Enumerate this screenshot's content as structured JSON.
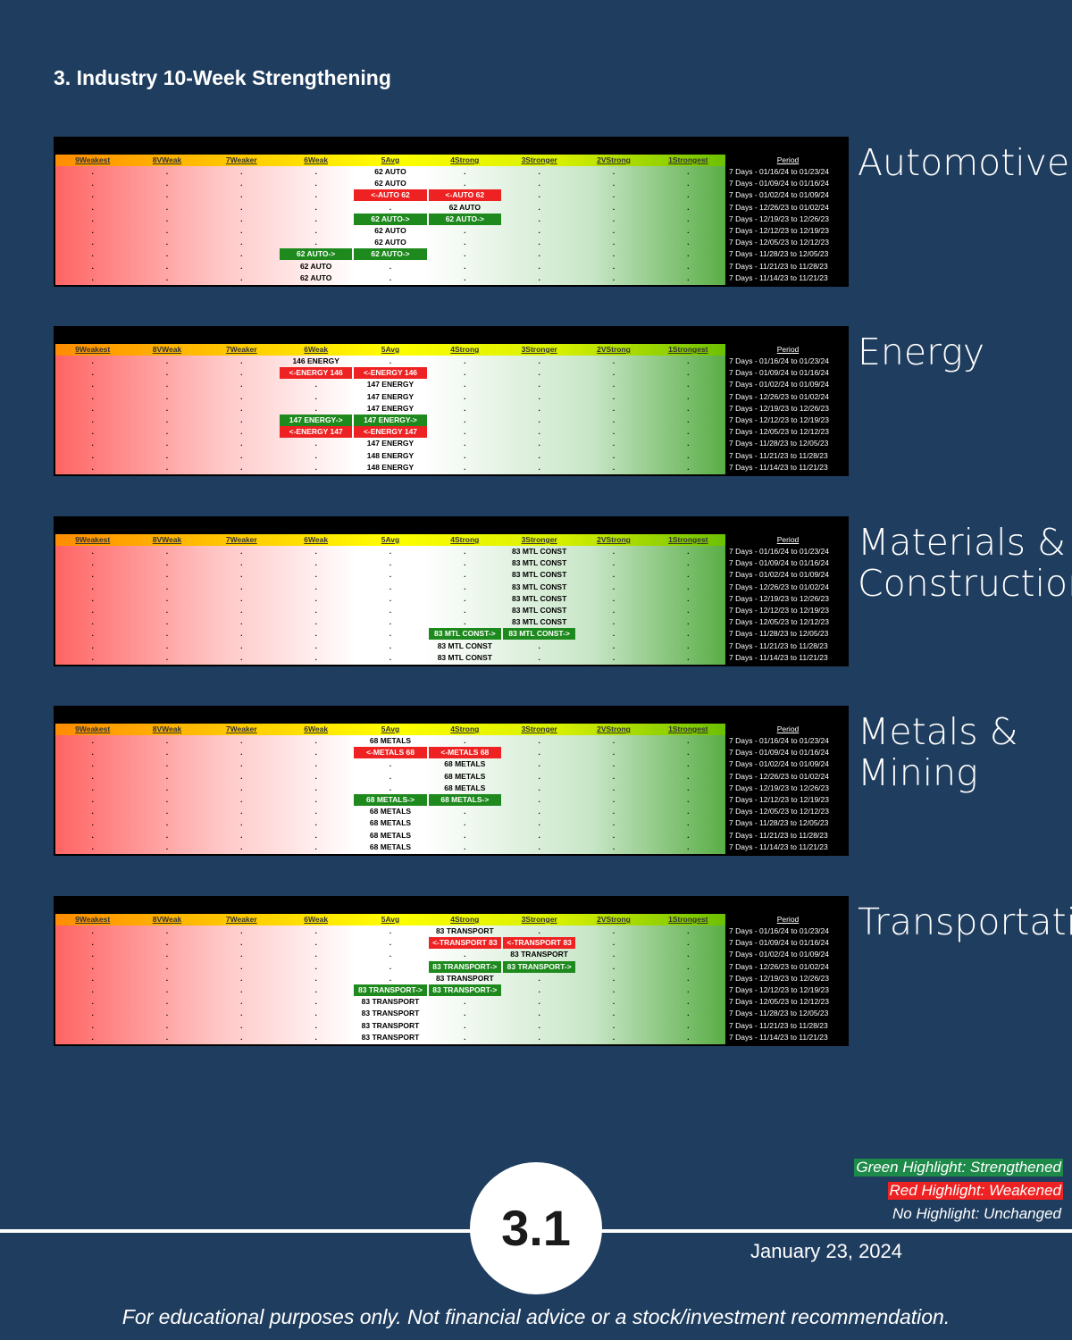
{
  "header": {
    "title": "3. Industry 10-Week Strengthening"
  },
  "columns": [
    "9Weakest",
    "8VWeak",
    "7Weaker",
    "6Weak",
    "5Avg",
    "4Strong",
    "3Stronger",
    "2VStrong",
    "1Strongest"
  ],
  "period_header": "Period",
  "periods": [
    "7 Days - 01/16/24 to 01/23/24",
    "7 Days - 01/09/24 to 01/16/24",
    "7 Days - 01/02/24 to 01/09/24",
    "7 Days - 12/26/23 to 01/02/24",
    "7 Days - 12/19/23 to 12/26/23",
    "7 Days - 12/12/23 to 12/19/23",
    "7 Days - 12/05/23 to 12/12/23",
    "7 Days - 11/28/23 to 12/05/23",
    "7 Days - 11/21/23 to 11/28/23",
    "7 Days - 11/14/23 to 11/21/23"
  ],
  "panels": [
    {
      "name": "Automotive",
      "rows": [
        [
          ".",
          ".",
          ".",
          ".",
          "62 AUTO",
          ".",
          ".",
          ".",
          "."
        ],
        [
          ".",
          ".",
          ".",
          ".",
          "62 AUTO",
          ".",
          ".",
          ".",
          "."
        ],
        [
          ".",
          ".",
          ".",
          ".",
          {
            "text": "<-AUTO 62",
            "hl": "red"
          },
          {
            "text": "<-AUTO 62",
            "hl": "red"
          },
          ".",
          ".",
          "."
        ],
        [
          ".",
          ".",
          ".",
          ".",
          ".",
          "62 AUTO",
          ".",
          ".",
          "."
        ],
        [
          ".",
          ".",
          ".",
          ".",
          {
            "text": "62 AUTO->",
            "hl": "green"
          },
          {
            "text": "62 AUTO->",
            "hl": "green"
          },
          ".",
          ".",
          "."
        ],
        [
          ".",
          ".",
          ".",
          ".",
          "62 AUTO",
          ".",
          ".",
          ".",
          "."
        ],
        [
          ".",
          ".",
          ".",
          ".",
          "62 AUTO",
          ".",
          ".",
          ".",
          "."
        ],
        [
          ".",
          ".",
          ".",
          {
            "text": "62 AUTO->",
            "hl": "green"
          },
          {
            "text": "62 AUTO->",
            "hl": "green"
          },
          ".",
          ".",
          ".",
          "."
        ],
        [
          ".",
          ".",
          ".",
          "62 AUTO",
          ".",
          ".",
          ".",
          ".",
          "."
        ],
        [
          ".",
          ".",
          ".",
          "62 AUTO",
          ".",
          ".",
          ".",
          ".",
          "."
        ]
      ]
    },
    {
      "name": "Energy",
      "rows": [
        [
          ".",
          ".",
          ".",
          "146 ENERGY",
          ".",
          ".",
          ".",
          ".",
          "."
        ],
        [
          ".",
          ".",
          ".",
          {
            "text": "<-ENERGY 146",
            "hl": "red"
          },
          {
            "text": "<-ENERGY 146",
            "hl": "red"
          },
          ".",
          ".",
          ".",
          "."
        ],
        [
          ".",
          ".",
          ".",
          ".",
          "147 ENERGY",
          ".",
          ".",
          ".",
          "."
        ],
        [
          ".",
          ".",
          ".",
          ".",
          "147 ENERGY",
          ".",
          ".",
          ".",
          "."
        ],
        [
          ".",
          ".",
          ".",
          ".",
          "147 ENERGY",
          ".",
          ".",
          ".",
          "."
        ],
        [
          ".",
          ".",
          ".",
          {
            "text": "147 ENERGY->",
            "hl": "green"
          },
          {
            "text": "147 ENERGY->",
            "hl": "green"
          },
          ".",
          ".",
          ".",
          "."
        ],
        [
          ".",
          ".",
          ".",
          {
            "text": "<-ENERGY 147",
            "hl": "red"
          },
          {
            "text": "<-ENERGY 147",
            "hl": "red"
          },
          ".",
          ".",
          ".",
          "."
        ],
        [
          ".",
          ".",
          ".",
          ".",
          "147 ENERGY",
          ".",
          ".",
          ".",
          "."
        ],
        [
          ".",
          ".",
          ".",
          ".",
          "148 ENERGY",
          ".",
          ".",
          ".",
          "."
        ],
        [
          ".",
          ".",
          ".",
          ".",
          "148 ENERGY",
          ".",
          ".",
          ".",
          "."
        ]
      ]
    },
    {
      "name": "Materials & Construction",
      "rows": [
        [
          ".",
          ".",
          ".",
          ".",
          ".",
          ".",
          "83 MTL CONST",
          ".",
          "."
        ],
        [
          ".",
          ".",
          ".",
          ".",
          ".",
          ".",
          "83 MTL CONST",
          ".",
          "."
        ],
        [
          ".",
          ".",
          ".",
          ".",
          ".",
          ".",
          "83 MTL CONST",
          ".",
          "."
        ],
        [
          ".",
          ".",
          ".",
          ".",
          ".",
          ".",
          "83 MTL CONST",
          ".",
          "."
        ],
        [
          ".",
          ".",
          ".",
          ".",
          ".",
          ".",
          "83 MTL CONST",
          ".",
          "."
        ],
        [
          ".",
          ".",
          ".",
          ".",
          ".",
          ".",
          "83 MTL CONST",
          ".",
          "."
        ],
        [
          ".",
          ".",
          ".",
          ".",
          ".",
          ".",
          "83 MTL CONST",
          ".",
          "."
        ],
        [
          ".",
          ".",
          ".",
          ".",
          ".",
          {
            "text": "83 MTL CONST->",
            "hl": "green"
          },
          {
            "text": "83 MTL CONST->",
            "hl": "green"
          },
          ".",
          "."
        ],
        [
          ".",
          ".",
          ".",
          ".",
          ".",
          "83 MTL CONST",
          ".",
          ".",
          "."
        ],
        [
          ".",
          ".",
          ".",
          ".",
          ".",
          "83 MTL CONST",
          ".",
          ".",
          "."
        ]
      ]
    },
    {
      "name": "Metals & Mining",
      "rows": [
        [
          ".",
          ".",
          ".",
          ".",
          "68 METALS",
          ".",
          ".",
          ".",
          "."
        ],
        [
          ".",
          ".",
          ".",
          ".",
          {
            "text": "<-METALS 68",
            "hl": "red"
          },
          {
            "text": "<-METALS 68",
            "hl": "red"
          },
          ".",
          ".",
          "."
        ],
        [
          ".",
          ".",
          ".",
          ".",
          ".",
          "68 METALS",
          ".",
          ".",
          "."
        ],
        [
          ".",
          ".",
          ".",
          ".",
          ".",
          "68 METALS",
          ".",
          ".",
          "."
        ],
        [
          ".",
          ".",
          ".",
          ".",
          ".",
          "68 METALS",
          ".",
          ".",
          "."
        ],
        [
          ".",
          ".",
          ".",
          ".",
          {
            "text": "68 METALS->",
            "hl": "green"
          },
          {
            "text": "68 METALS->",
            "hl": "green"
          },
          ".",
          ".",
          "."
        ],
        [
          ".",
          ".",
          ".",
          ".",
          "68 METALS",
          ".",
          ".",
          ".",
          "."
        ],
        [
          ".",
          ".",
          ".",
          ".",
          "68 METALS",
          ".",
          ".",
          ".",
          "."
        ],
        [
          ".",
          ".",
          ".",
          ".",
          "68 METALS",
          ".",
          ".",
          ".",
          "."
        ],
        [
          ".",
          ".",
          ".",
          ".",
          "68 METALS",
          ".",
          ".",
          ".",
          "."
        ]
      ]
    },
    {
      "name": "Transportation",
      "rows": [
        [
          ".",
          ".",
          ".",
          ".",
          ".",
          "83 TRANSPORT",
          ".",
          ".",
          "."
        ],
        [
          ".",
          ".",
          ".",
          ".",
          ".",
          {
            "text": "<-TRANSPORT 83",
            "hl": "red"
          },
          {
            "text": "<-TRANSPORT 83",
            "hl": "red"
          },
          ".",
          "."
        ],
        [
          ".",
          ".",
          ".",
          ".",
          ".",
          ".",
          "83 TRANSPORT",
          ".",
          "."
        ],
        [
          ".",
          ".",
          ".",
          ".",
          ".",
          {
            "text": "83 TRANSPORT->",
            "hl": "green"
          },
          {
            "text": "83 TRANSPORT->",
            "hl": "green"
          },
          ".",
          "."
        ],
        [
          ".",
          ".",
          ".",
          ".",
          ".",
          "83 TRANSPORT",
          ".",
          ".",
          "."
        ],
        [
          ".",
          ".",
          ".",
          ".",
          {
            "text": "83 TRANSPORT->",
            "hl": "green"
          },
          {
            "text": "83 TRANSPORT->",
            "hl": "green"
          },
          ".",
          ".",
          "."
        ],
        [
          ".",
          ".",
          ".",
          ".",
          "83 TRANSPORT",
          ".",
          ".",
          ".",
          "."
        ],
        [
          ".",
          ".",
          ".",
          ".",
          "83 TRANSPORT",
          ".",
          ".",
          ".",
          "."
        ],
        [
          ".",
          ".",
          ".",
          ".",
          "83 TRANSPORT",
          ".",
          ".",
          ".",
          "."
        ],
        [
          ".",
          ".",
          ".",
          ".",
          "83 TRANSPORT",
          ".",
          ".",
          ".",
          "."
        ]
      ]
    }
  ],
  "legend": [
    {
      "text": "Green Highlight: Strengthened",
      "hl": "green"
    },
    {
      "text": "Red Highlight: Weakened",
      "hl": "red"
    },
    {
      "text": "No Highlight: Unchanged"
    }
  ],
  "footer": {
    "page": "3.1",
    "date": "January 23, 2024",
    "disclaimer": "For educational purposes only. Not financial advice or a stock/investment recommendation."
  }
}
